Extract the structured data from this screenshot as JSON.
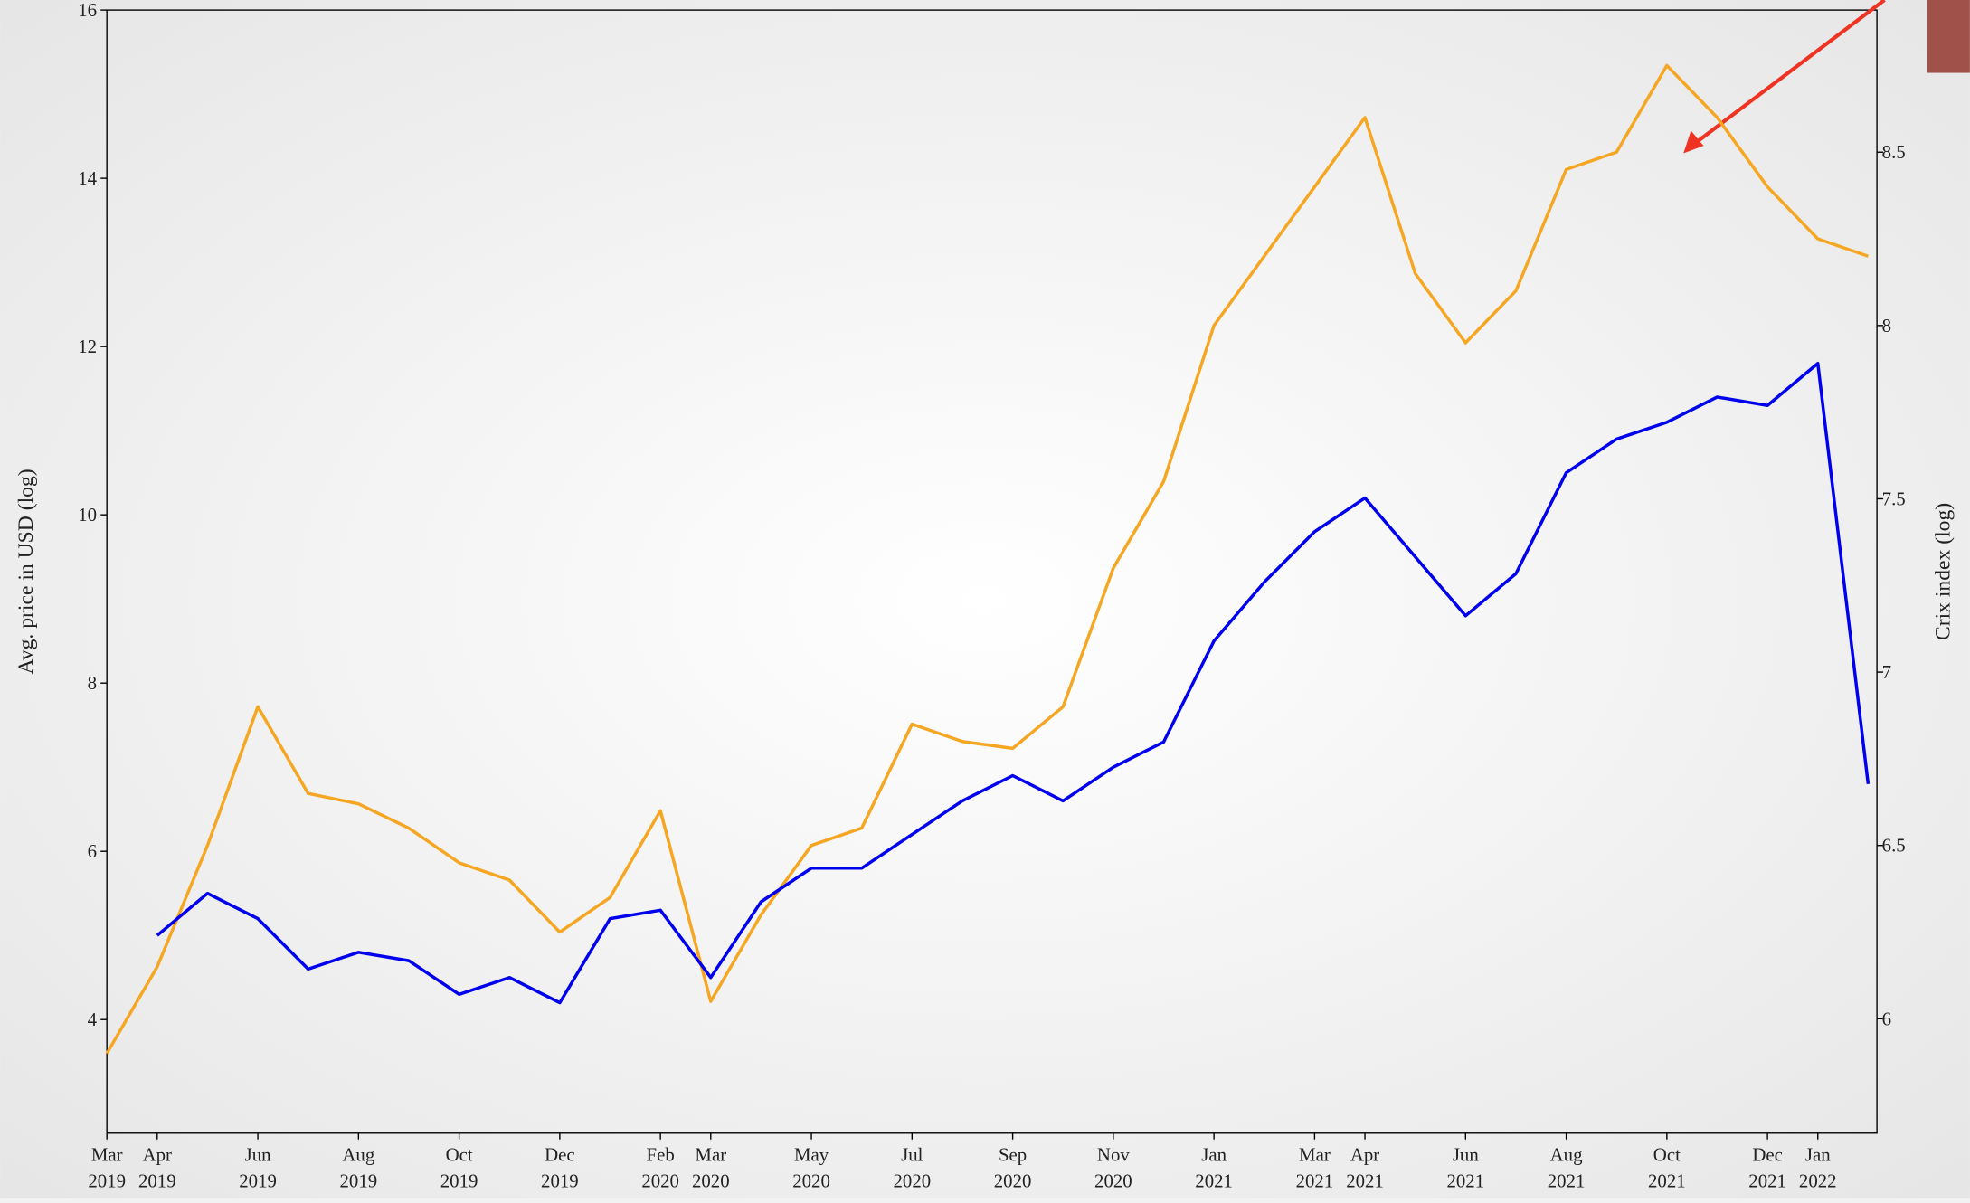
{
  "chart_data": {
    "type": "line",
    "ylabel": "Avg. price in USD (log)",
    "y2label": "Crix index (log)",
    "x": [
      "2019-03",
      "2019-04",
      "2019-05",
      "2019-06",
      "2019-07",
      "2019-08",
      "2019-09",
      "2019-10",
      "2019-11",
      "2019-12",
      "2020-01",
      "2020-02",
      "2020-03",
      "2020-04",
      "2020-05",
      "2020-06",
      "2020-07",
      "2020-08",
      "2020-09",
      "2020-10",
      "2020-11",
      "2020-12",
      "2021-01",
      "2021-02",
      "2021-03",
      "2021-04",
      "2021-05",
      "2021-06",
      "2021-07",
      "2021-08",
      "2021-09",
      "2021-10",
      "2021-11",
      "2021-12",
      "2022-01",
      "2022-02"
    ],
    "xlim": [
      "2019-03",
      "2022-02"
    ],
    "xticks": [
      {
        "value": "2019-03",
        "label": "Mar 2019"
      },
      {
        "value": "2019-04",
        "label": "Apr 2019"
      },
      {
        "value": "2019-06",
        "label": "Jun 2019"
      },
      {
        "value": "2019-08",
        "label": "Aug 2019"
      },
      {
        "value": "2019-10",
        "label": "Oct 2019"
      },
      {
        "value": "2019-12",
        "label": "Dec 2019"
      },
      {
        "value": "2020-02",
        "label": "Feb 2020"
      },
      {
        "value": "2020-03",
        "label": "Mar 2020"
      },
      {
        "value": "2020-05",
        "label": "May 2020"
      },
      {
        "value": "2020-07",
        "label": "Jul 2020"
      },
      {
        "value": "2020-09",
        "label": "Sep 2020"
      },
      {
        "value": "2020-11",
        "label": "Nov 2020"
      },
      {
        "value": "2021-01",
        "label": "Jan 2021"
      },
      {
        "value": "2021-03",
        "label": "Mar 2021"
      },
      {
        "value": "2021-04",
        "label": "Apr 2021"
      },
      {
        "value": "2021-06",
        "label": "Jun 2021"
      },
      {
        "value": "2021-08",
        "label": "Aug 2021"
      },
      {
        "value": "2021-10",
        "label": "Oct 2021"
      },
      {
        "value": "2021-12",
        "label": "Dec 2021"
      },
      {
        "value": "2022-01",
        "label": "Jan 2022"
      }
    ],
    "ylim": [
      2.65,
      16
    ],
    "yticks": [
      4,
      6,
      8,
      10,
      12,
      14,
      16
    ],
    "y2lim": [
      5.67,
      8.91
    ],
    "y2ticks": [
      6,
      6.5,
      7,
      7.5,
      8,
      8.5
    ],
    "series": [
      {
        "name": "Avg. price",
        "color": "#0000ee",
        "values": [
          null,
          5.0,
          5.5,
          5.2,
          4.6,
          4.8,
          4.7,
          4.3,
          4.5,
          4.2,
          5.2,
          5.3,
          4.5,
          5.4,
          5.8,
          5.8,
          6.2,
          6.6,
          6.9,
          6.6,
          7.0,
          7.3,
          8.5,
          9.2,
          9.8,
          10.2,
          9.5,
          8.8,
          9.3,
          10.5,
          10.9,
          11.1,
          11.4,
          11.3,
          11.8,
          6.8
        ]
      },
      {
        "name": "Crix index",
        "color": "#f5a623",
        "axis": "y2",
        "values": [
          5.9,
          6.15,
          6.5,
          6.9,
          6.65,
          6.62,
          6.55,
          6.45,
          6.4,
          6.25,
          6.35,
          6.6,
          6.05,
          6.3,
          6.5,
          6.55,
          6.85,
          6.8,
          6.78,
          6.9,
          7.3,
          7.55,
          8.0,
          8.2,
          8.4,
          8.6,
          8.15,
          7.95,
          8.1,
          8.45,
          8.5,
          8.75,
          8.6,
          8.4,
          8.25,
          8.2
        ]
      }
    ]
  }
}
